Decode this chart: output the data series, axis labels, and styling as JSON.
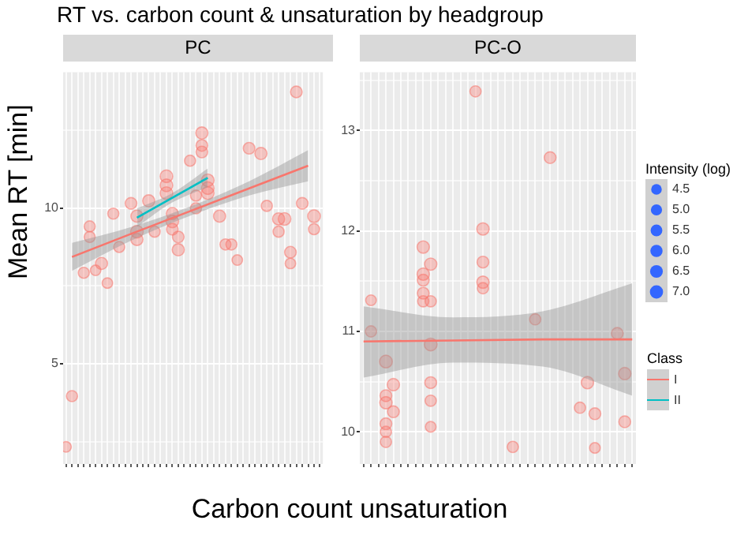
{
  "chart_data": [
    {
      "type": "bubble",
      "title": "RT vs. carbon count & unsaturation by headgroup",
      "subtitle": "PC",
      "xlabel": "Carbon count unsaturation",
      "ylabel": "Mean RT [min]",
      "legend": "right",
      "legend_title": "Class",
      "grid": true,
      "categories": [
        null,
        null,
        null,
        null,
        null,
        null,
        null,
        null,
        null,
        null,
        null,
        null,
        null,
        null,
        null,
        null,
        null,
        null,
        null,
        null,
        null,
        null,
        null,
        null,
        null,
        null,
        null,
        null,
        null,
        null,
        null,
        null,
        null,
        null,
        null,
        null,
        null,
        null,
        null,
        null,
        null,
        null,
        null,
        null
      ],
      "ylim": [
        1.78,
        14.36
      ],
      "yticks": [
        {
          "value": 2.5,
          "label": null
        },
        5,
        {
          "value": 7.5,
          "label": null
        },
        10,
        {
          "value": 12.5,
          "label": null
        }
      ],
      "series": [
        {
          "color": "#f8766d",
          "values": [
            2.33,
            3.96,
            null,
            7.92,
            9.41,
            8.0,
            8.22,
            7.59,
            9.82,
            8.75,
            null,
            10.15,
            9.74,
            null,
            10.23,
            9.24,
            null,
            11.02,
            9.82,
            8.66,
            null,
            11.52,
            10.4,
            12.41,
            10.89,
            null,
            9.74,
            8.83,
            8.83,
            8.33,
            null,
            11.92,
            null,
            11.75,
            10.07,
            null,
            9.65,
            9.65,
            8.58,
            13.73,
            10.15,
            null,
            9.74,
            null
          ],
          "sizes": [
            0.69,
            0.77,
            null,
            0.77,
            0.77,
            0.69,
            0.92,
            0.69,
            0.77,
            0.77,
            null,
            0.85,
            0.92,
            null,
            0.92,
            0.77,
            null,
            1,
            0.92,
            0.92,
            null,
            0.77,
            0.77,
            0.92,
            1,
            null,
            0.92,
            0.77,
            0.77,
            0.69,
            null,
            0.85,
            null,
            0.92,
            0.77,
            null,
            0.92,
            1,
            0.85,
            0.85,
            0.85,
            null,
            1,
            null
          ]
        },
        {
          "color": "#f8766d",
          "values": [
            null,
            null,
            null,
            null,
            9.07,
            null,
            null,
            null,
            null,
            null,
            null,
            null,
            9.24,
            null,
            null,
            null,
            null,
            10.73,
            9.57,
            9.07,
            null,
            null,
            9.99,
            12.01,
            10.64,
            null,
            null,
            null,
            null,
            null,
            null,
            null,
            null,
            null,
            null,
            null,
            9.24,
            null,
            8.22,
            null,
            null,
            null,
            9.32,
            null
          ],
          "sizes": [
            null,
            null,
            null,
            null,
            0.77,
            null,
            null,
            null,
            null,
            null,
            null,
            null,
            1,
            null,
            null,
            null,
            null,
            1,
            1,
            0.85,
            null,
            null,
            0.77,
            0.85,
            1,
            null,
            null,
            null,
            null,
            null,
            null,
            null,
            null,
            null,
            null,
            null,
            0.77,
            null,
            0.69,
            null,
            null,
            null,
            0.77,
            null
          ]
        },
        {
          "color": "#f8766d",
          "values": [
            null,
            null,
            null,
            null,
            null,
            null,
            null,
            null,
            null,
            null,
            null,
            null,
            8.99,
            null,
            null,
            null,
            null,
            10.48,
            9.32,
            null,
            null,
            null,
            null,
            11.8,
            10.48,
            null,
            null,
            null,
            null,
            null,
            null,
            null,
            null,
            null,
            null,
            null,
            null,
            null,
            null,
            null,
            null,
            null,
            null,
            null
          ],
          "sizes": [
            null,
            null,
            null,
            null,
            null,
            null,
            null,
            null,
            null,
            null,
            null,
            null,
            0.92,
            null,
            null,
            null,
            null,
            1,
            0.85,
            null,
            null,
            null,
            null,
            0.85,
            1,
            null,
            null,
            null,
            null,
            null,
            null,
            null,
            null,
            null,
            null,
            null,
            null,
            null,
            null,
            null,
            null,
            null,
            null,
            null
          ]
        },
        {
          "type": "line",
          "name": "I",
          "color": "#f8766d",
          "values": [
            null,
            8.43,
            null,
            null,
            null,
            null,
            null,
            null,
            null,
            null,
            null,
            9.17,
            null,
            null,
            null,
            null,
            null,
            null,
            null,
            null,
            null,
            9.9,
            null,
            null,
            null,
            null,
            null,
            null,
            null,
            null,
            null,
            10.63,
            null,
            null,
            null,
            null,
            null,
            null,
            null,
            null,
            null,
            11.36,
            null,
            null
          ],
          "lower": [
            null,
            7.98,
            null,
            null,
            null,
            null,
            null,
            null,
            null,
            null,
            null,
            8.95,
            null,
            null,
            null,
            null,
            null,
            null,
            null,
            null,
            null,
            9.75,
            null,
            null,
            null,
            null,
            null,
            null,
            null,
            null,
            null,
            10.4,
            null,
            null,
            null,
            null,
            null,
            null,
            null,
            null,
            null,
            10.86,
            null,
            null
          ],
          "upper": [
            null,
            8.88,
            null,
            null,
            null,
            null,
            null,
            null,
            null,
            null,
            null,
            9.39,
            null,
            null,
            null,
            null,
            null,
            null,
            null,
            null,
            null,
            10.05,
            null,
            null,
            null,
            null,
            null,
            null,
            null,
            null,
            null,
            10.86,
            null,
            null,
            null,
            null,
            null,
            null,
            null,
            null,
            null,
            11.86,
            null,
            null
          ]
        },
        {
          "type": "line",
          "name": "II",
          "color": "#00bfc4",
          "values": [
            null,
            null,
            null,
            null,
            null,
            null,
            null,
            null,
            null,
            null,
            null,
            null,
            9.69,
            null,
            null,
            null,
            null,
            null,
            10.33,
            null,
            null,
            null,
            null,
            null,
            10.97,
            null,
            null,
            null,
            null,
            null,
            null,
            null,
            null,
            null,
            null,
            null,
            null,
            null,
            null,
            null,
            null,
            null,
            null,
            null
          ],
          "lower": [
            null,
            null,
            null,
            null,
            null,
            null,
            null,
            null,
            null,
            null,
            null,
            null,
            9.39,
            null,
            null,
            null,
            null,
            null,
            10.18,
            null,
            null,
            null,
            null,
            null,
            10.67,
            null,
            null,
            null,
            null,
            null,
            null,
            null,
            null,
            null,
            null,
            null,
            null,
            null,
            null,
            null,
            null,
            null,
            null,
            null
          ],
          "upper": [
            null,
            null,
            null,
            null,
            null,
            null,
            null,
            null,
            null,
            null,
            null,
            null,
            9.99,
            null,
            null,
            null,
            null,
            null,
            10.48,
            null,
            null,
            null,
            null,
            null,
            11.27,
            null,
            null,
            null,
            null,
            null,
            null,
            null,
            null,
            null,
            null,
            null,
            null,
            null,
            null,
            null,
            null,
            null,
            null,
            null
          ]
        }
      ]
    },
    {
      "type": "bubble",
      "subtitle": "PC-O",
      "legend": "right",
      "legend_title": "Intensity (log)",
      "size_legend": [
        4.5,
        {
          "value": 5,
          "label": "5.0"
        },
        5.5,
        {
          "value": 6,
          "label": "6.0"
        },
        6.5,
        {
          "value": 7,
          "label": "7.0"
        }
      ],
      "grid": true,
      "categories": [
        null,
        null,
        null,
        null,
        null,
        null,
        null,
        null,
        null,
        null,
        null,
        null,
        null,
        null,
        null,
        null,
        null,
        null,
        null,
        null,
        null,
        null,
        null,
        null,
        null,
        null,
        null,
        null,
        null,
        null,
        null,
        null,
        null,
        null,
        null,
        null,
        null
      ],
      "ylim": [
        9.68,
        13.58
      ],
      "yticks": [
        10,
        {
          "value": 10.5,
          "label": null
        },
        11,
        {
          "value": 11.5,
          "label": null
        },
        12,
        {
          "value": 12.5,
          "label": null
        },
        13,
        {
          "value": 13.5,
          "label": null
        }
      ],
      "series": [
        {
          "color": "#f8766d",
          "values": [
            null,
            11.31,
            null,
            10.7,
            10.47,
            null,
            null,
            null,
            11.84,
            11.67,
            null,
            null,
            null,
            null,
            null,
            13.39,
            12.02,
            null,
            null,
            null,
            9.85,
            null,
            null,
            11.12,
            null,
            12.73,
            null,
            null,
            null,
            10.24,
            10.49,
            10.18,
            null,
            null,
            10.98,
            10.58,
            null
          ],
          "sizes": [
            null,
            4.5,
            null,
            6.5,
            6.0,
            null,
            null,
            null,
            6.0,
            6.0,
            null,
            null,
            null,
            null,
            null,
            5.0,
            6.0,
            null,
            null,
            null,
            5.0,
            null,
            null,
            5.0,
            null,
            5.5,
            null,
            null,
            null,
            5.0,
            6.0,
            5.5,
            null,
            null,
            5.5,
            6.0,
            null
          ]
        },
        {
          "color": "#f8766d",
          "values": [
            null,
            11.0,
            null,
            10.36,
            10.2,
            null,
            null,
            null,
            11.57,
            11.3,
            null,
            null,
            null,
            null,
            null,
            null,
            11.69,
            null,
            null,
            null,
            null,
            null,
            null,
            null,
            null,
            null,
            null,
            null,
            null,
            null,
            null,
            9.84,
            null,
            null,
            null,
            10.1,
            null
          ],
          "sizes": [
            null,
            5.0,
            null,
            5.5,
            5.5,
            null,
            null,
            null,
            6.0,
            5.0,
            null,
            null,
            null,
            null,
            null,
            null,
            5.5,
            null,
            null,
            null,
            null,
            null,
            null,
            null,
            null,
            null,
            null,
            null,
            null,
            null,
            null,
            4.5,
            null,
            null,
            null,
            5.5,
            null
          ]
        },
        {
          "color": "#f8766d",
          "values": [
            null,
            null,
            null,
            10.29,
            null,
            null,
            null,
            null,
            11.51,
            10.87,
            null,
            null,
            null,
            null,
            null,
            null,
            11.49,
            null,
            null,
            null,
            null,
            null,
            null,
            null,
            null,
            null,
            null,
            null,
            null,
            null,
            null,
            null,
            null,
            null,
            null,
            null,
            null
          ],
          "sizes": [
            null,
            null,
            null,
            6.0,
            null,
            null,
            null,
            null,
            5.5,
            6.5,
            null,
            null,
            null,
            null,
            null,
            null,
            6.0,
            null,
            null,
            null,
            null,
            null,
            null,
            null,
            null,
            null,
            null,
            null,
            null,
            null,
            null,
            null,
            null,
            null,
            null,
            null,
            null
          ]
        },
        {
          "color": "#f8766d",
          "values": [
            null,
            null,
            null,
            10.08,
            null,
            null,
            null,
            null,
            11.38,
            10.49,
            null,
            null,
            null,
            null,
            null,
            null,
            11.43,
            null,
            null,
            null,
            null,
            null,
            null,
            null,
            null,
            null,
            null,
            null,
            null,
            null,
            null,
            null,
            null,
            null,
            null,
            null,
            null
          ],
          "sizes": [
            null,
            null,
            null,
            5.5,
            null,
            null,
            null,
            null,
            5.5,
            5.5,
            null,
            null,
            null,
            null,
            null,
            null,
            5.0,
            null,
            null,
            null,
            null,
            null,
            null,
            null,
            null,
            null,
            null,
            null,
            null,
            null,
            null,
            null,
            null,
            null,
            null,
            null,
            null
          ]
        },
        {
          "color": "#f8766d",
          "values": [
            null,
            null,
            null,
            10.0,
            null,
            null,
            null,
            null,
            11.3,
            10.31,
            null,
            null,
            null,
            null,
            null,
            null,
            null,
            null,
            null,
            null,
            null,
            null,
            null,
            null,
            null,
            null,
            null,
            null,
            null,
            null,
            null,
            null,
            null,
            null,
            null,
            null,
            null
          ],
          "sizes": [
            null,
            null,
            null,
            5.0,
            null,
            null,
            null,
            null,
            5.0,
            5.0,
            null,
            null,
            null,
            null,
            null,
            null,
            null,
            null,
            null,
            null,
            null,
            null,
            null,
            null,
            null,
            null,
            null,
            null,
            null,
            null,
            null,
            null,
            null,
            null,
            null,
            null,
            null
          ]
        },
        {
          "color": "#f8766d",
          "values": [
            null,
            null,
            null,
            9.9,
            null,
            null,
            null,
            null,
            null,
            10.05,
            null,
            null,
            null,
            null,
            null,
            null,
            null,
            null,
            null,
            null,
            null,
            null,
            null,
            null,
            null,
            null,
            null,
            null,
            null,
            null,
            null,
            null,
            null,
            null,
            null,
            null,
            null
          ],
          "sizes": [
            null,
            null,
            null,
            5.0,
            null,
            null,
            null,
            null,
            null,
            4.5,
            null,
            null,
            null,
            null,
            null,
            null,
            null,
            null,
            null,
            null,
            null,
            null,
            null,
            null,
            null,
            null,
            null,
            null,
            null,
            null,
            null,
            null,
            null,
            null,
            null,
            null,
            null
          ]
        },
        {
          "type": "line",
          "color": "#f8766d",
          "values": [
            10.9,
            null,
            null,
            null,
            null,
            null,
            null,
            null,
            null,
            null,
            null,
            null,
            10.91,
            null,
            null,
            null,
            null,
            null,
            null,
            null,
            null,
            null,
            null,
            null,
            10.92,
            null,
            null,
            null,
            null,
            null,
            null,
            null,
            null,
            null,
            null,
            null,
            10.92
          ],
          "lower": [
            10.54,
            null,
            null,
            null,
            null,
            null,
            null,
            null,
            null,
            null,
            null,
            null,
            10.69,
            null,
            null,
            null,
            null,
            null,
            null,
            null,
            null,
            null,
            null,
            null,
            10.65,
            null,
            null,
            null,
            null,
            null,
            null,
            null,
            null,
            null,
            null,
            null,
            10.36
          ],
          "upper": [
            11.25,
            null,
            null,
            null,
            null,
            null,
            null,
            null,
            null,
            null,
            null,
            null,
            11.14,
            null,
            null,
            null,
            null,
            null,
            null,
            null,
            null,
            null,
            null,
            null,
            11.2,
            null,
            null,
            null,
            null,
            null,
            null,
            null,
            null,
            null,
            null,
            null,
            11.48
          ]
        }
      ]
    }
  ]
}
